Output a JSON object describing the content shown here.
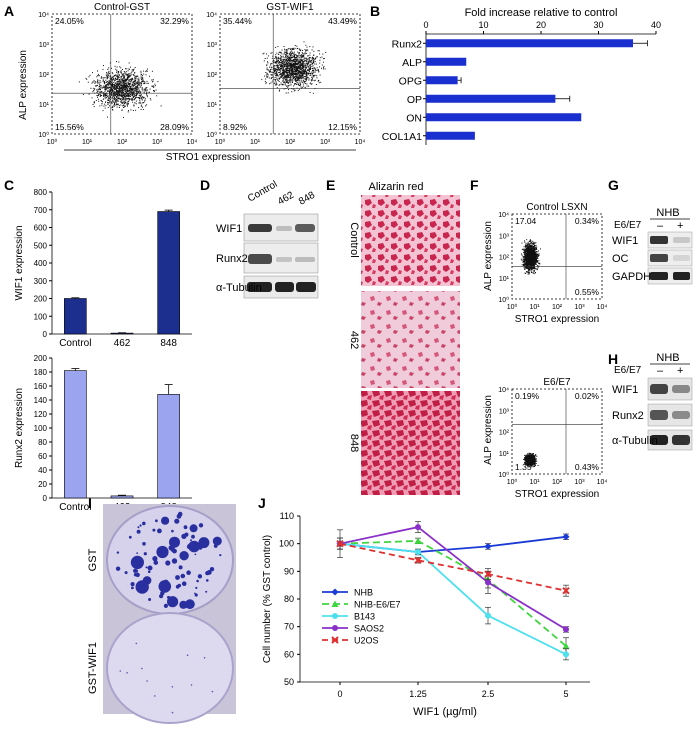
{
  "panel_letters": [
    "A",
    "B",
    "C",
    "D",
    "E",
    "F",
    "G",
    "H",
    "I",
    "J"
  ],
  "panelA": {
    "ylabel": "ALP expression",
    "xlabel": "STRO1 expression",
    "plots": [
      {
        "title": "Control-GST",
        "quadrants": {
          "ul": "24.05%",
          "ur": "32.29%",
          "ll": "15.56%",
          "lr": "28.09%"
        }
      },
      {
        "title": "GST-WIF1",
        "quadrants": {
          "ul": "35.44%",
          "ur": "43.49%",
          "ll": "8.92%",
          "lr": "12.15%"
        }
      }
    ],
    "xticks": [
      "10⁰",
      "10¹",
      "10²",
      "10³",
      "10⁴"
    ],
    "yticks": [
      "10⁰",
      "10¹",
      "10²",
      "10³",
      "10⁴"
    ]
  },
  "panelD": {
    "lanes": [
      "Control",
      "462",
      "848"
    ],
    "rows": [
      "WIF1",
      "Runx2",
      "α-Tubulin"
    ]
  },
  "panelE": {
    "title": "Alizarin red",
    "rows": [
      "Control",
      "462",
      "848"
    ]
  },
  "panelF": {
    "ylabel": "ALP expression",
    "xlabel": "STRO1 expression",
    "plots": [
      {
        "title": "Control LSXN",
        "quadrants": {
          "ul": "17.04",
          "ur": "0.34%",
          "ll": "",
          "lr": "0.55%"
        }
      },
      {
        "title": "E6/E7",
        "quadrants": {
          "ul": "0.19%",
          "ur": "0.02%",
          "ll": "1.35",
          "lr": "0.43%"
        }
      }
    ],
    "xticks": [
      "10⁰",
      "10¹",
      "10²",
      "10³",
      "10⁴"
    ],
    "yticks": [
      "10⁰",
      "10¹",
      "10²",
      "10³",
      "10⁴"
    ]
  },
  "panelG": {
    "cell": "NHB",
    "treat": "E6/E7",
    "lanes": [
      "–",
      "+"
    ],
    "rows": [
      "WIF1",
      "OC",
      "GAPDH"
    ]
  },
  "panelH": {
    "cell": "NHB",
    "treat": "E6/E7",
    "lanes": [
      "–",
      "+"
    ],
    "rows": [
      "WIF1",
      "Runx2",
      "α-Tubulin"
    ]
  },
  "panelI": {
    "rows": [
      "GST",
      "GST-WIF1"
    ]
  },
  "chart_data": [
    {
      "panel": "B",
      "type": "bar",
      "orientation": "horizontal",
      "title": "Fold increase relative to control",
      "categories": [
        "Runx2",
        "ALP",
        "OPG",
        "OP",
        "ON",
        "COL1A1"
      ],
      "values": [
        36,
        7,
        5.5,
        22.5,
        27,
        8.5
      ],
      "errors": [
        2.5,
        0,
        0.6,
        2.5,
        0,
        0
      ],
      "xlim": [
        0,
        40
      ],
      "xticks": [
        "0",
        "10",
        "20",
        "30",
        "40"
      ],
      "color": "#1a2fcf"
    },
    {
      "panel": "C-top",
      "type": "bar",
      "categories": [
        "Control",
        "462",
        "848"
      ],
      "values": [
        200,
        5,
        690
      ],
      "errors": [
        4,
        2,
        8
      ],
      "ylim": [
        0,
        800
      ],
      "yticks": [
        "0",
        "100",
        "200",
        "300",
        "400",
        "500",
        "600",
        "700",
        "800"
      ],
      "ylabel": "WIF1 expression",
      "color": "#1c2f8f"
    },
    {
      "panel": "C-bottom",
      "type": "bar",
      "categories": [
        "Control",
        "462",
        "848"
      ],
      "values": [
        182,
        3,
        148
      ],
      "errors": [
        3,
        1,
        14
      ],
      "ylim": [
        0,
        200
      ],
      "yticks": [
        "0",
        "20",
        "40",
        "60",
        "80",
        "100",
        "120",
        "140",
        "160",
        "180",
        "200"
      ],
      "ylabel": "Runx2 expression",
      "color": "#9aa4ef"
    },
    {
      "panel": "J",
      "type": "line",
      "x": [
        "0",
        "1.25",
        "2.5",
        "5"
      ],
      "xlabel": "WIF1 (µg/ml)",
      "ylabel": "Cell number (% GST control)",
      "ylim": [
        50,
        110
      ],
      "yticks": [
        "50",
        "60",
        "70",
        "80",
        "90",
        "100",
        "110"
      ],
      "series": [
        {
          "name": "NHB",
          "values": [
            100,
            97,
            99,
            102.5
          ],
          "errors": [
            5,
            1,
            1,
            1
          ],
          "color": "#1a3bd6",
          "dash": "",
          "marker": "diamond"
        },
        {
          "name": "NHB-E6/E7",
          "values": [
            100,
            101,
            87,
            63
          ],
          "errors": [
            2,
            1,
            3,
            3
          ],
          "color": "#3fd63f",
          "dash": "7,4",
          "marker": "triangle"
        },
        {
          "name": "B143",
          "values": [
            100,
            97,
            74,
            60
          ],
          "errors": [
            2,
            1,
            3,
            2
          ],
          "color": "#4fe0ef",
          "dash": "",
          "marker": "circle"
        },
        {
          "name": "SAOS2",
          "values": [
            100,
            106,
            86,
            69
          ],
          "errors": [
            2,
            2,
            4,
            1
          ],
          "color": "#8a2fc8",
          "dash": "",
          "marker": "circle"
        },
        {
          "name": "U2OS",
          "values": [
            100,
            94,
            89,
            83
          ],
          "errors": [
            2,
            1,
            2,
            2
          ],
          "color": "#e03030",
          "dash": "6,4",
          "marker": "cross"
        }
      ]
    }
  ]
}
